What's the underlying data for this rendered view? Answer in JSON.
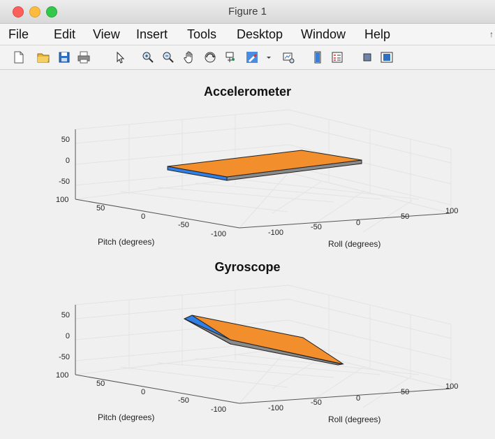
{
  "window": {
    "title": "Figure 1"
  },
  "menu": [
    "File",
    "Edit",
    "View",
    "Insert",
    "Tools",
    "Desktop",
    "Window",
    "Help"
  ],
  "menu_overflow": "↑",
  "toolbar": [
    "new-figure-icon",
    "open-folder-icon",
    "save-icon",
    "print-icon",
    "pointer-icon",
    "zoom-in-icon",
    "zoom-out-icon",
    "pan-icon",
    "rotate-3d-icon",
    "data-cursor-icon",
    "brush-icon",
    "dropdown-arrow-icon",
    "link-plot-icon",
    "colorbar-icon",
    "legend-icon",
    "hide-plot-tools-icon",
    "show-plot-tools-icon"
  ],
  "colors": {
    "top_face": "#f28e2b",
    "side_face": "#2f7fe6",
    "front_face": "#8a8a8a",
    "edge": "#222222",
    "grid": "#e3e3e3",
    "axis": "#555555"
  },
  "plots": [
    {
      "name": "accelerometer",
      "title": "Accelerometer",
      "zticks": [
        "50",
        "0",
        "-50"
      ],
      "pitch_ticks": [
        "100",
        "50",
        "0",
        "-50",
        "-100"
      ],
      "roll_ticks": [
        "-100",
        "-50",
        "0",
        "50",
        "100"
      ],
      "pitch_label": "Pitch (degrees)",
      "roll_label": "Roll (degrees)"
    },
    {
      "name": "gyroscope",
      "title": "Gyroscope",
      "zticks": [
        "50",
        "0",
        "-50"
      ],
      "pitch_ticks": [
        "100",
        "50",
        "0",
        "-50",
        "-100"
      ],
      "roll_ticks": [
        "-100",
        "-50",
        "0",
        "50",
        "100"
      ],
      "pitch_label": "Pitch (degrees)",
      "roll_label": "Roll (degrees)"
    }
  ]
}
